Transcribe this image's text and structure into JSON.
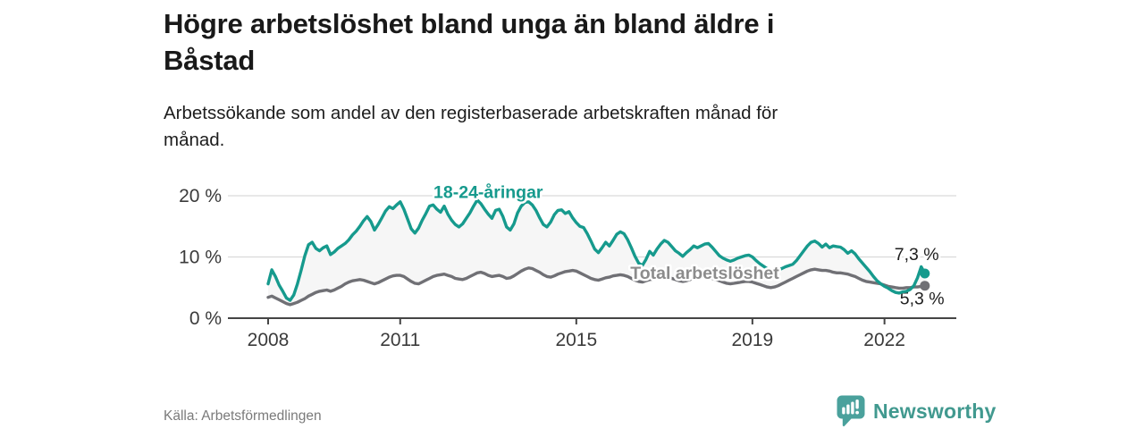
{
  "header": {
    "title_lines": [
      "Högre arbetslöshet bland unga än bland äldre i",
      "Båstad"
    ],
    "subtitle_lines": [
      "Arbetssökande som andel av den registerbaserade arbetskraften månad för",
      "månad."
    ]
  },
  "chart_data": {
    "type": "line",
    "unit": "percent",
    "frequency": "monthly",
    "x_start": "2008-01",
    "x_end": "2022-12",
    "ylim": [
      0,
      22
    ],
    "grid": "horizontal",
    "y_gridline_values": [
      10,
      20
    ],
    "y_tick_values": [
      0,
      10,
      20
    ],
    "y_tick_labels": [
      "0 %",
      "10 %",
      "20 %"
    ],
    "x_tick_labels": [
      {
        "label": "2008",
        "month_index": 0
      },
      {
        "label": "2011",
        "month_index": 36
      },
      {
        "label": "2015",
        "month_index": 84
      },
      {
        "label": "2019",
        "month_index": 132
      },
      {
        "label": "2022",
        "month_index": 168
      }
    ],
    "area_fill_between_series": true,
    "area_color": "#f6f6f6",
    "series": [
      {
        "name": "18-24-åringar",
        "color": "#169a8d",
        "end_label": "7,3 %",
        "last_value": 7.3,
        "values": [
          5.6,
          7.9,
          6.8,
          5.4,
          4.4,
          3.3,
          2.9,
          3.8,
          5.6,
          7.8,
          10.2,
          12.0,
          12.4,
          11.4,
          11.0,
          11.5,
          11.8,
          10.4,
          10.8,
          11.4,
          11.8,
          12.2,
          12.8,
          13.6,
          14.2,
          15.0,
          15.9,
          16.6,
          15.8,
          14.4,
          15.3,
          16.4,
          17.5,
          18.2,
          17.9,
          18.5,
          19.0,
          17.8,
          16.2,
          14.6,
          13.9,
          14.7,
          16.0,
          17.1,
          18.3,
          18.5,
          17.8,
          17.3,
          18.3,
          17.0,
          16.0,
          15.3,
          14.9,
          15.4,
          16.3,
          17.2,
          18.3,
          19.3,
          18.7,
          17.8,
          17.0,
          16.3,
          17.6,
          17.8,
          16.6,
          14.9,
          14.4,
          15.4,
          17.2,
          18.3,
          18.9,
          19.0,
          18.5,
          17.6,
          16.4,
          15.3,
          14.9,
          15.7,
          16.9,
          17.6,
          17.7,
          17.1,
          17.4,
          16.4,
          15.6,
          15.0,
          14.8,
          13.8,
          12.6,
          11.3,
          10.7,
          11.5,
          12.4,
          11.8,
          12.7,
          13.7,
          14.1,
          13.8,
          12.8,
          11.5,
          10.1,
          9.0,
          8.6,
          9.6,
          10.9,
          10.3,
          11.3,
          12.1,
          12.7,
          12.4,
          11.7,
          11.0,
          10.6,
          10.1,
          10.7,
          11.2,
          11.8,
          11.5,
          11.8,
          12.1,
          12.2,
          11.6,
          10.9,
          10.2,
          9.8,
          9.5,
          9.3,
          9.5,
          9.8,
          10.0,
          10.2,
          10.3,
          10.0,
          9.4,
          8.9,
          8.5,
          8.1,
          7.8,
          7.7,
          7.9,
          8.1,
          8.4,
          8.6,
          8.8,
          9.4,
          10.2,
          11.0,
          11.8,
          12.4,
          12.6,
          12.2,
          11.6,
          12.1,
          11.5,
          11.8,
          11.7,
          11.6,
          11.2,
          10.6,
          11.0,
          10.5,
          9.7,
          9.0,
          8.3,
          7.6,
          6.8,
          6.1,
          5.6,
          5.2,
          4.9,
          4.5,
          4.2,
          4.1,
          4.3,
          4.4,
          4.7,
          5.3,
          6.6,
          8.4,
          7.3
        ]
      },
      {
        "name": "Total arbetslöshet",
        "color": "#707075",
        "end_label": "5,3 %",
        "last_value": 5.3,
        "values": [
          3.4,
          3.6,
          3.3,
          3.0,
          2.7,
          2.4,
          2.2,
          2.4,
          2.6,
          2.9,
          3.2,
          3.6,
          3.9,
          4.2,
          4.4,
          4.5,
          4.6,
          4.4,
          4.6,
          4.9,
          5.2,
          5.6,
          5.9,
          6.1,
          6.2,
          6.3,
          6.2,
          6.0,
          5.8,
          5.6,
          5.8,
          6.1,
          6.4,
          6.7,
          6.9,
          7.0,
          7.0,
          6.8,
          6.4,
          6.0,
          5.7,
          5.6,
          5.9,
          6.2,
          6.5,
          6.8,
          7.0,
          7.1,
          7.2,
          7.0,
          6.8,
          6.5,
          6.4,
          6.3,
          6.5,
          6.8,
          7.1,
          7.4,
          7.5,
          7.3,
          7.0,
          6.8,
          6.9,
          7.0,
          6.8,
          6.5,
          6.6,
          6.9,
          7.3,
          7.7,
          8.0,
          8.2,
          8.1,
          7.8,
          7.5,
          7.1,
          6.8,
          6.7,
          6.9,
          7.2,
          7.4,
          7.6,
          7.7,
          7.8,
          7.7,
          7.4,
          7.1,
          6.8,
          6.5,
          6.3,
          6.2,
          6.4,
          6.6,
          6.7,
          6.9,
          7.0,
          7.1,
          7.0,
          6.8,
          6.5,
          6.2,
          6.0,
          5.9,
          6.1,
          6.3,
          6.4,
          6.6,
          6.7,
          6.8,
          6.7,
          6.5,
          6.3,
          6.1,
          6.0,
          6.1,
          6.3,
          6.5,
          6.6,
          6.7,
          6.8,
          6.7,
          6.5,
          6.3,
          6.1,
          5.9,
          5.7,
          5.6,
          5.7,
          5.8,
          5.9,
          6.0,
          6.0,
          5.9,
          5.7,
          5.5,
          5.3,
          5.1,
          5.0,
          5.1,
          5.3,
          5.6,
          5.9,
          6.2,
          6.5,
          6.8,
          7.1,
          7.4,
          7.7,
          7.9,
          8.0,
          7.9,
          7.8,
          7.8,
          7.7,
          7.5,
          7.4,
          7.4,
          7.3,
          7.2,
          7.0,
          6.8,
          6.5,
          6.2,
          6.0,
          5.9,
          5.8,
          5.7,
          5.6,
          5.4,
          5.2,
          5.1,
          5.0,
          4.9,
          4.9,
          5.0,
          5.0,
          5.1,
          5.1,
          5.2,
          5.3
        ]
      }
    ],
    "series_labels": [
      {
        "text": "18-24-åringar",
        "month_index": 60,
        "value": 19.6,
        "color": "#169a8d"
      },
      {
        "text": "Total arbetslöshet",
        "month_index": 119,
        "value": 6.4,
        "color": "#8c8c8c"
      }
    ]
  },
  "footer": {
    "source": "Källa: Arbetsförmedlingen",
    "brand": "Newsworthy",
    "brand_color": "#41998f"
  }
}
